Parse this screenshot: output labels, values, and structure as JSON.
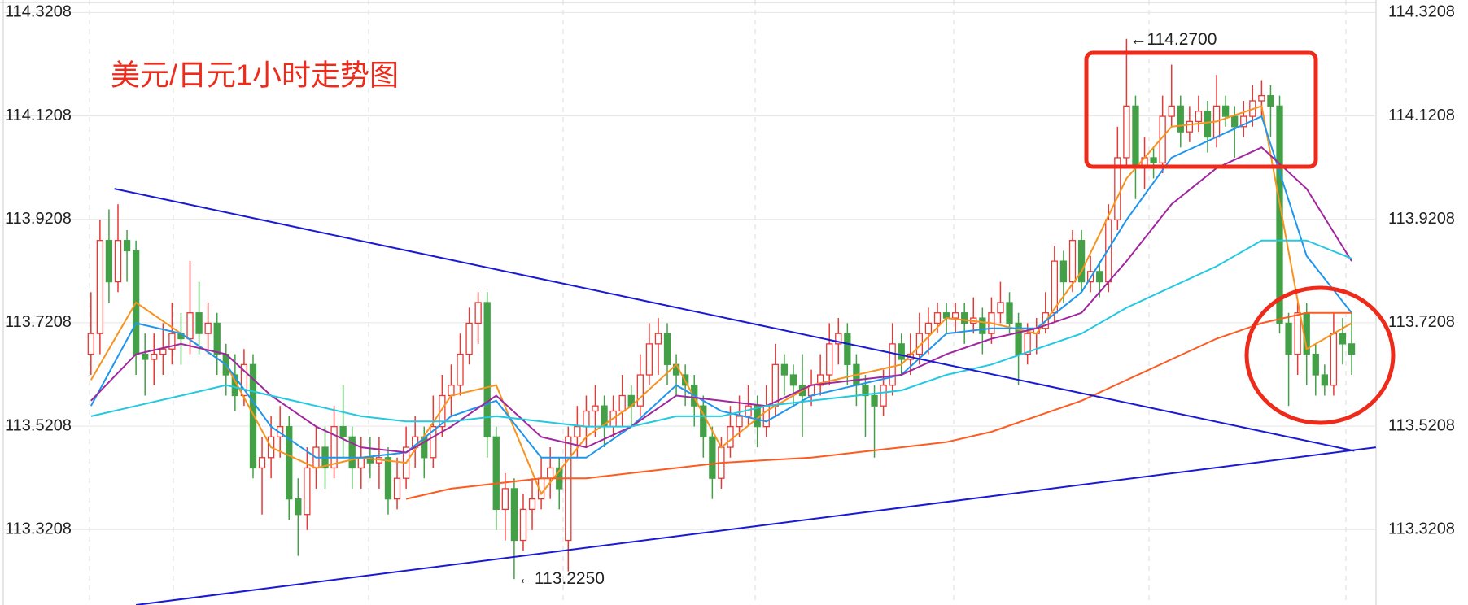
{
  "chart_data": {
    "type": "candlestick",
    "title": "美元/日元1小时走势图",
    "ylim": [
      113.175,
      114.345
    ],
    "yticks": [
      113.3208,
      113.5208,
      113.7208,
      113.9208,
      114.1208,
      114.3208
    ],
    "grid": true,
    "up_color": "#e53935",
    "down_color": "#43a047",
    "candles": [
      [
        113.66,
        113.78,
        113.62,
        113.7
      ],
      [
        113.7,
        113.92,
        113.66,
        113.88
      ],
      [
        113.88,
        113.94,
        113.76,
        113.8
      ],
      [
        113.8,
        113.95,
        113.78,
        113.88
      ],
      [
        113.88,
        113.9,
        113.8,
        113.86
      ],
      [
        113.86,
        113.88,
        113.62,
        113.66
      ],
      [
        113.66,
        113.7,
        113.58,
        113.65
      ],
      [
        113.65,
        113.7,
        113.6,
        113.66
      ],
      [
        113.66,
        113.72,
        113.62,
        113.67
      ],
      [
        113.67,
        113.76,
        113.64,
        113.7
      ],
      [
        113.7,
        113.74,
        113.64,
        113.69
      ],
      [
        113.69,
        113.84,
        113.66,
        113.74
      ],
      [
        113.74,
        113.8,
        113.66,
        113.7
      ],
      [
        113.7,
        113.76,
        113.66,
        113.72
      ],
      [
        113.72,
        113.74,
        113.62,
        113.66
      ],
      [
        113.66,
        113.68,
        113.58,
        113.62
      ],
      [
        113.62,
        113.66,
        113.55,
        113.58
      ],
      [
        113.58,
        113.67,
        113.56,
        113.64
      ],
      [
        113.64,
        113.66,
        113.42,
        113.44
      ],
      [
        113.44,
        113.5,
        113.35,
        113.46
      ],
      [
        113.46,
        113.54,
        113.42,
        113.5
      ],
      [
        113.5,
        113.56,
        113.46,
        113.52
      ],
      [
        113.52,
        113.54,
        113.34,
        113.38
      ],
      [
        113.38,
        113.42,
        113.27,
        113.35
      ],
      [
        113.35,
        113.48,
        113.32,
        113.44
      ],
      [
        113.44,
        113.52,
        113.4,
        113.48
      ],
      [
        113.48,
        113.52,
        113.4,
        113.44
      ],
      [
        113.44,
        113.56,
        113.42,
        113.52
      ],
      [
        113.52,
        113.6,
        113.46,
        113.5
      ],
      [
        113.5,
        113.52,
        113.4,
        113.44
      ],
      [
        113.44,
        113.5,
        113.4,
        113.46
      ],
      [
        113.46,
        113.5,
        113.42,
        113.45
      ],
      [
        113.45,
        113.5,
        113.4,
        113.46
      ],
      [
        113.46,
        113.48,
        113.35,
        113.38
      ],
      [
        113.38,
        113.46,
        113.36,
        113.42
      ],
      [
        113.42,
        113.52,
        113.4,
        113.48
      ],
      [
        113.48,
        113.54,
        113.44,
        113.5
      ],
      [
        113.5,
        113.52,
        113.42,
        113.46
      ],
      [
        113.46,
        113.58,
        113.44,
        113.52
      ],
      [
        113.52,
        113.62,
        113.5,
        113.58
      ],
      [
        113.58,
        113.64,
        113.54,
        113.6
      ],
      [
        113.6,
        113.7,
        113.58,
        113.66
      ],
      [
        113.66,
        113.75,
        113.64,
        113.72
      ],
      [
        113.72,
        113.78,
        113.68,
        113.76
      ],
      [
        113.76,
        113.78,
        113.46,
        113.5
      ],
      [
        113.5,
        113.52,
        113.32,
        113.36
      ],
      [
        113.36,
        113.43,
        113.3,
        113.4
      ],
      [
        113.4,
        113.42,
        113.225,
        113.3
      ],
      [
        113.3,
        113.39,
        113.28,
        113.36
      ],
      [
        113.36,
        113.42,
        113.32,
        113.38
      ],
      [
        113.38,
        113.46,
        113.36,
        113.42
      ],
      [
        113.42,
        113.48,
        113.38,
        113.44
      ],
      [
        113.44,
        113.46,
        113.36,
        113.4
      ],
      [
        113.3,
        113.52,
        113.24,
        113.5
      ],
      [
        113.5,
        113.56,
        113.46,
        113.52
      ],
      [
        113.52,
        113.58,
        113.48,
        113.55
      ],
      [
        113.55,
        113.6,
        113.5,
        113.56
      ],
      [
        113.56,
        113.58,
        113.48,
        113.52
      ],
      [
        113.52,
        113.58,
        113.5,
        113.55
      ],
      [
        113.55,
        113.62,
        113.52,
        113.58
      ],
      [
        113.58,
        113.6,
        113.52,
        113.56
      ],
      [
        113.56,
        113.66,
        113.54,
        113.62
      ],
      [
        113.62,
        113.72,
        113.6,
        113.68
      ],
      [
        113.68,
        113.73,
        113.62,
        113.7
      ],
      [
        113.7,
        113.72,
        113.6,
        113.64
      ],
      [
        113.64,
        113.66,
        113.58,
        113.62
      ],
      [
        113.62,
        113.64,
        113.56,
        113.6
      ],
      [
        113.6,
        113.62,
        113.52,
        113.56
      ],
      [
        113.56,
        113.58,
        113.46,
        113.5
      ],
      [
        113.5,
        113.52,
        113.38,
        113.42
      ],
      [
        113.42,
        113.5,
        113.4,
        113.48
      ],
      [
        113.48,
        113.56,
        113.46,
        113.52
      ],
      [
        113.52,
        113.58,
        113.5,
        113.54
      ],
      [
        113.54,
        113.6,
        113.52,
        113.56
      ],
      [
        113.56,
        113.58,
        113.48,
        113.52
      ],
      [
        113.52,
        113.6,
        113.5,
        113.56
      ],
      [
        113.56,
        113.68,
        113.54,
        113.64
      ],
      [
        113.64,
        113.66,
        113.58,
        113.62
      ],
      [
        113.62,
        113.64,
        113.56,
        113.6
      ],
      [
        113.6,
        113.66,
        113.5,
        113.58
      ],
      [
        113.58,
        113.63,
        113.56,
        113.6
      ],
      [
        113.6,
        113.66,
        113.58,
        113.62
      ],
      [
        113.62,
        113.72,
        113.6,
        113.68
      ],
      [
        113.68,
        113.73,
        113.64,
        113.7
      ],
      [
        113.7,
        113.72,
        113.6,
        113.64
      ],
      [
        113.64,
        113.66,
        113.56,
        113.6
      ],
      [
        113.6,
        113.62,
        113.5,
        113.58
      ],
      [
        113.58,
        113.6,
        113.46,
        113.56
      ],
      [
        113.56,
        113.63,
        113.54,
        113.6
      ],
      [
        113.6,
        113.72,
        113.58,
        113.68
      ],
      [
        113.68,
        113.7,
        113.62,
        113.65
      ],
      [
        113.65,
        113.7,
        113.62,
        113.66
      ],
      [
        113.66,
        113.74,
        113.64,
        113.7
      ],
      [
        113.7,
        113.75,
        113.66,
        113.72
      ],
      [
        113.72,
        113.76,
        113.7,
        113.74
      ],
      [
        113.74,
        113.76,
        113.7,
        113.73
      ],
      [
        113.73,
        113.76,
        113.7,
        113.74
      ],
      [
        113.74,
        113.76,
        113.68,
        113.72
      ],
      [
        113.72,
        113.77,
        113.7,
        113.73
      ],
      [
        113.73,
        113.75,
        113.66,
        113.7
      ],
      [
        113.7,
        113.77,
        113.68,
        113.74
      ],
      [
        113.74,
        113.8,
        113.72,
        113.76
      ],
      [
        113.76,
        113.78,
        113.7,
        113.72
      ],
      [
        113.72,
        113.74,
        113.6,
        113.66
      ],
      [
        113.66,
        113.72,
        113.64,
        113.7
      ],
      [
        113.7,
        113.73,
        113.66,
        113.71
      ],
      [
        113.71,
        113.78,
        113.7,
        113.74
      ],
      [
        113.74,
        113.87,
        113.72,
        113.84
      ],
      [
        113.84,
        113.86,
        113.76,
        113.8
      ],
      [
        113.8,
        113.9,
        113.78,
        113.88
      ],
      [
        113.88,
        113.9,
        113.78,
        113.8
      ],
      [
        113.8,
        113.85,
        113.78,
        113.82
      ],
      [
        113.82,
        113.84,
        113.77,
        113.8
      ],
      [
        113.8,
        113.95,
        113.78,
        113.92
      ],
      [
        113.92,
        114.1,
        113.9,
        114.04
      ],
      [
        114.04,
        114.27,
        114.02,
        114.14
      ],
      [
        114.14,
        114.16,
        113.96,
        114.02
      ],
      [
        114.02,
        114.08,
        113.98,
        114.04
      ],
      [
        114.04,
        114.06,
        114.0,
        114.03
      ],
      [
        114.03,
        114.16,
        114.01,
        114.12
      ],
      [
        114.12,
        114.22,
        114.1,
        114.14
      ],
      [
        114.14,
        114.16,
        114.06,
        114.09
      ],
      [
        114.09,
        114.14,
        114.07,
        114.11
      ],
      [
        114.11,
        114.16,
        114.09,
        114.13
      ],
      [
        114.13,
        114.15,
        114.05,
        114.08
      ],
      [
        114.08,
        114.2,
        114.06,
        114.14
      ],
      [
        114.14,
        114.16,
        114.1,
        114.12
      ],
      [
        114.12,
        114.14,
        114.04,
        114.1
      ],
      [
        114.1,
        114.15,
        114.08,
        114.12
      ],
      [
        114.12,
        114.18,
        114.1,
        114.15
      ],
      [
        114.15,
        114.19,
        114.12,
        114.16
      ],
      [
        114.16,
        114.18,
        114.08,
        114.14
      ],
      [
        114.14,
        114.16,
        113.7,
        113.72
      ],
      [
        113.72,
        113.74,
        113.56,
        113.66
      ],
      [
        113.66,
        113.76,
        113.62,
        113.74
      ],
      [
        113.74,
        113.76,
        113.6,
        113.66
      ],
      [
        113.66,
        113.68,
        113.58,
        113.62
      ],
      [
        113.62,
        113.64,
        113.58,
        113.6
      ],
      [
        113.6,
        113.74,
        113.58,
        113.7
      ],
      [
        113.7,
        113.73,
        113.64,
        113.68
      ],
      [
        113.68,
        113.74,
        113.62,
        113.66
      ]
    ],
    "x": [
      0,
      5,
      10,
      15,
      20,
      25,
      30,
      35,
      40,
      45,
      50,
      55,
      60,
      65,
      70,
      75,
      80,
      85,
      90,
      95,
      100,
      105,
      110,
      115,
      120,
      125,
      130,
      135,
      140
    ],
    "series": [
      {
        "color": "#f7931e",
        "values": [
          113.61,
          113.76,
          113.7,
          113.64,
          113.48,
          113.44,
          113.46,
          113.45,
          113.58,
          113.6,
          113.39,
          113.5,
          113.56,
          113.64,
          113.48,
          113.55,
          113.6,
          113.62,
          113.64,
          113.73,
          113.72,
          113.7,
          113.82,
          114.0,
          114.1,
          114.11,
          114.14,
          113.67,
          113.72
        ]
      },
      {
        "color": "#1e96ef",
        "values": [
          113.56,
          113.72,
          113.7,
          113.64,
          113.52,
          113.46,
          113.46,
          113.47,
          113.54,
          113.57,
          113.46,
          113.46,
          113.52,
          113.6,
          113.55,
          113.53,
          113.58,
          113.6,
          113.62,
          113.7,
          113.71,
          113.71,
          113.78,
          113.92,
          114.04,
          114.08,
          114.12,
          113.85,
          113.74
        ]
      },
      {
        "color": "#a0279e",
        "values": [
          113.57,
          113.66,
          113.68,
          113.66,
          113.58,
          113.52,
          113.48,
          113.47,
          113.52,
          113.58,
          113.5,
          113.48,
          113.52,
          113.58,
          113.57,
          113.56,
          113.6,
          113.61,
          113.62,
          113.66,
          113.69,
          113.71,
          113.74,
          113.84,
          113.95,
          114.02,
          114.06,
          113.98,
          113.84
        ]
      },
      {
        "color": "#22c9e0",
        "values": [
          113.54,
          113.56,
          113.58,
          113.6,
          113.58,
          113.56,
          113.54,
          113.53,
          113.53,
          113.54,
          113.53,
          113.52,
          113.52,
          113.54,
          113.54,
          113.56,
          113.57,
          113.58,
          113.59,
          113.62,
          113.64,
          113.67,
          113.7,
          113.75,
          113.79,
          113.83,
          113.88,
          113.88,
          113.845
        ]
      },
      {
        "color": "#ff5a1f",
        "values": [
          null,
          null,
          null,
          null,
          null,
          null,
          null,
          113.38,
          113.4,
          113.41,
          113.42,
          113.42,
          113.43,
          113.44,
          113.45,
          113.455,
          113.46,
          113.47,
          113.48,
          113.49,
          113.51,
          113.54,
          113.57,
          113.61,
          113.65,
          113.69,
          113.72,
          113.74,
          113.74
        ]
      }
    ],
    "trendlines": [
      {
        "color": "#1a1ad6",
        "x": [
          2.6,
          140.3
        ],
        "values": [
          113.98,
          113.473
        ]
      },
      {
        "color": "#1a1ad6",
        "x": [
          5,
          142.7
        ],
        "values": [
          113.175,
          113.48
        ]
      }
    ],
    "annotations": [
      {
        "label": "←114.2700",
        "value": 114.27
      },
      {
        "label": "←113.2250",
        "value": 113.225
      }
    ]
  }
}
